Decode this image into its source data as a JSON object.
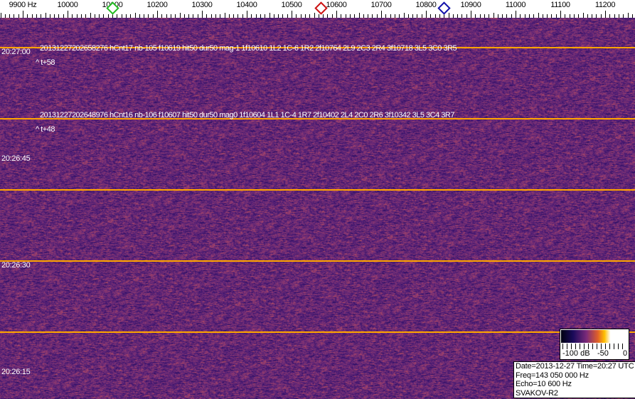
{
  "frequency_scale": {
    "labels": [
      "9900 Hz",
      "10000",
      "10100",
      "10200",
      "10300",
      "10400",
      "10500",
      "10600",
      "10700",
      "10800",
      "10900",
      "11000",
      "11100",
      "11200"
    ],
    "markers": [
      {
        "name": "green-marker",
        "color": "#22bb22",
        "freq": 10100
      },
      {
        "name": "red-marker",
        "color": "#cc1111",
        "freq": 10565
      },
      {
        "name": "blue-marker",
        "color": "#1111aa",
        "freq": 10840
      }
    ]
  },
  "waterfall": {
    "line_color": "#ffa500",
    "time_labels": [
      "20:27:00",
      "20:26:45",
      "20:26:30",
      "20:26:15"
    ],
    "annotations": [
      {
        "text": "20131227202658276 hCnt17 nb-105 f10619 hit50 dur50 mag-1 1f10610 1L2 1C-6 1R2 2f10764 2L9 2C3 2R4 3f10718 3L5 3C0 3R5",
        "offset": "^ t+58"
      },
      {
        "text": "20131227202648976 hCnt16 nb-106 f10607 hit50 dur50 mag0 1f10604 1L1 1C-4 1R7 2f10402 2L4 2C0 2R6 3f10342 3L5 3C4 3R7",
        "offset": "^ t+48"
      }
    ]
  },
  "color_legend": {
    "labels": [
      "-100 dB",
      "-50",
      "0"
    ]
  },
  "info": {
    "date_time": "Date=2013-12-27 Time=20:27 UTC",
    "freq": "Freq=143 050 000 Hz",
    "echo": "Echo=10 600 Hz",
    "station": "SVAKOV-R2"
  }
}
